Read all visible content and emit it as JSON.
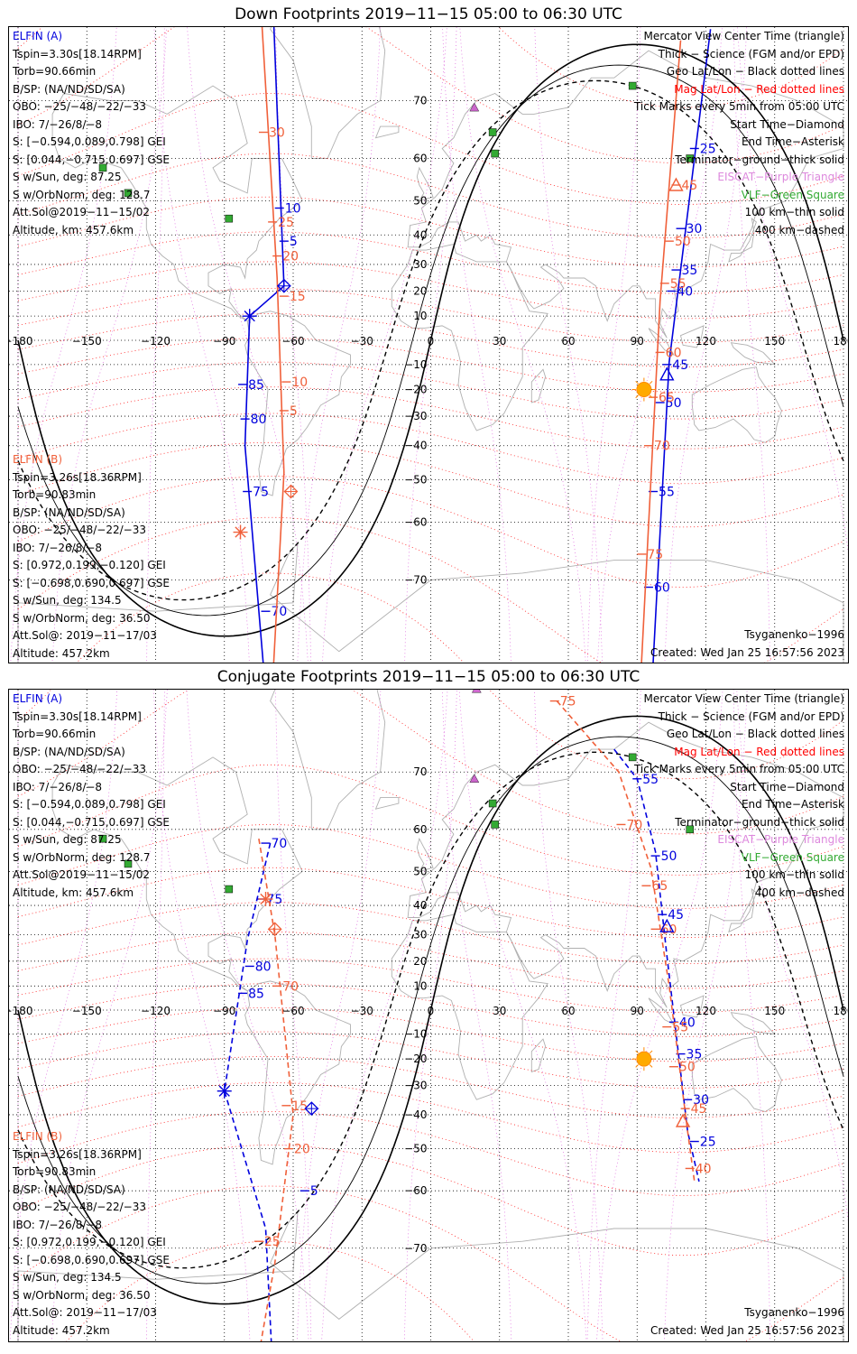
{
  "panels": [
    {
      "title": "Down Footprints 2019−11−15 05:00 to 06:30 UTC",
      "elfin_a": {
        "name": "ELFIN (A)",
        "lines": [
          "Tspin=3.30s[18.14RPM]",
          "Torb=90.66min",
          "B/SP: (NA/ND/SD/SA)",
          "OBO: −25/−48/−22/−33",
          "IBO: 7/−26/8/−8",
          "S: [−0.594,0.089,0.798] GEI",
          "S: [0.044,−0.715,0.697] GSE",
          "S w/Sun, deg: 87.25",
          "S w/OrbNorm, deg: 128.7",
          "Att.Sol@2019−11−15/02",
          "Altitude, km: 457.6km"
        ]
      },
      "elfin_b": {
        "name": "ELFIN (B)",
        "lines": [
          "Tspin=3.26s[18.36RPM]",
          "Torb=90.83min",
          "B/SP: (NA/ND/SD/SA)",
          "OBO: −25/−48/−22/−33",
          "IBO: 7/−26/8/−8",
          "S: [0.972,0.199,−0.120] GEI",
          "S: [−0.698,0.690,0.697] GSE",
          "S w/Sun, deg: 134.5",
          "S w/OrbNorm, deg: 36.50",
          "Att.Sol@: 2019−11−17/03",
          "Altitude: 457.2km"
        ]
      },
      "legend": [
        {
          "text": "Mercator View Center Time (triangle)",
          "color": "#000000"
        },
        {
          "text": "Thick − Science (FGM and/or EPD)",
          "color": "#000000"
        },
        {
          "text": "Geo Lat/Lon − Black dotted lines",
          "color": "#000000"
        },
        {
          "text": "Mag Lat/Lon − Red dotted lines",
          "color": "#ff0000"
        },
        {
          "text": "Tick Marks every 5min from 05:00 UTC",
          "color": "#000000"
        },
        {
          "text": "Start Time−Diamond",
          "color": "#000000"
        },
        {
          "text": "End Time−Asterisk",
          "color": "#000000"
        },
        {
          "text": "Terminator−ground−thick solid",
          "color": "#000000"
        },
        {
          "text": "EISCAT−Purple Triangle",
          "color": "#dd88dd"
        },
        {
          "text": "VLF−Green Square",
          "color": "#33aa33"
        },
        {
          "text": "100 km−thin solid",
          "color": "#000000"
        },
        {
          "text": "400 km−dashed",
          "color": "#000000"
        }
      ],
      "model": "Tsyganenko−1996",
      "created": "Created: Wed Jan 25 16:57:56 2023",
      "lon_labels": [
        "−180",
        "−150",
        "−120",
        "−90",
        "−60",
        "−30",
        "0",
        "30",
        "60",
        "90",
        "120",
        "150",
        "180"
      ],
      "lat_labels": [
        "70",
        "60",
        "50",
        "40",
        "30",
        "20",
        "10",
        "0",
        "−10",
        "−20",
        "−30",
        "−40",
        "−50",
        "−60",
        "−70"
      ],
      "tracks": [
        {
          "sat": "A",
          "color": "#0000dd",
          "dashed": false,
          "points": [
            [
              -70,
              85
            ],
            [
              -64,
              22
            ],
            [
              -79,
              10
            ],
            [
              -81,
              -40
            ],
            [
              -70,
              -85
            ]
          ],
          "ticks": [
            {
              "label": "15",
              "lon": -70,
              "lat": 80
            },
            {
              "label": "10",
              "lon": -66,
              "lat": 48
            },
            {
              "label": "5",
              "lon": -64,
              "lat": 38
            },
            {
              "label": "85",
              "lon": -82,
              "lat": -18
            },
            {
              "label": "80",
              "lon": -81,
              "lat": -31
            },
            {
              "label": "75",
              "lon": -80,
              "lat": -53
            },
            {
              "label": "70",
              "lon": -72,
              "lat": -74
            }
          ]
        },
        {
          "sat": "B",
          "color": "#f0603a",
          "dashed": false,
          "points": [
            [
              -76,
              85
            ],
            [
              -67,
              25
            ],
            [
              -64,
              -48
            ],
            [
              -70,
              -83
            ]
          ],
          "ticks": [
            {
              "label": "30",
              "lon": -73,
              "lat": 65
            },
            {
              "label": "25",
              "lon": -69,
              "lat": 44
            },
            {
              "label": "20",
              "lon": -67,
              "lat": 33
            },
            {
              "label": "15",
              "lon": -64,
              "lat": 18
            },
            {
              "label": "10",
              "lon": -63,
              "lat": -17
            },
            {
              "label": "5",
              "lon": -64,
              "lat": -28
            }
          ]
        },
        {
          "sat": "A",
          "color": "#0000dd",
          "dashed": false,
          "points": [
            [
              122,
              78
            ],
            [
              104,
              -9
            ],
            [
              95,
              -85
            ]
          ],
          "ticks": [
            {
              "label": "25",
              "lon": 115,
              "lat": 62
            },
            {
              "label": "30",
              "lon": 109,
              "lat": 42
            },
            {
              "label": "35",
              "lon": 107,
              "lat": 28
            },
            {
              "label": "40",
              "lon": 105,
              "lat": 20
            },
            {
              "label": "45",
              "lon": 103,
              "lat": -10
            },
            {
              "label": "50",
              "lon": 100,
              "lat": -25
            },
            {
              "label": "55",
              "lon": 97,
              "lat": -53
            },
            {
              "label": "60",
              "lon": 95,
              "lat": -71
            }
          ]
        },
        {
          "sat": "B",
          "color": "#f0603a",
          "dashed": false,
          "points": [
            [
              109,
              77
            ],
            [
              100,
              16
            ],
            [
              90,
              -85
            ]
          ],
          "ticks": [
            {
              "label": "45",
              "lon": 107,
              "lat": 54
            },
            {
              "label": "50",
              "lon": 104,
              "lat": 38
            },
            {
              "label": "55",
              "lon": 102,
              "lat": 23
            },
            {
              "label": "60",
              "lon": 100,
              "lat": -5
            },
            {
              "label": "65",
              "lon": 97,
              "lat": -23
            },
            {
              "label": "70",
              "lon": 95,
              "lat": -40
            },
            {
              "label": "75",
              "lon": 92,
              "lat": -66
            }
          ]
        }
      ],
      "markers": {
        "vlf_sites": [
          [
            -143,
            58
          ],
          [
            -132,
            52
          ],
          [
            -88,
            45
          ],
          [
            27,
            65
          ],
          [
            28,
            61
          ],
          [
            88,
            72
          ],
          [
            113,
            60
          ]
        ],
        "eiscat_sites": [
          [
            20,
            79
          ],
          [
            19,
            69
          ]
        ],
        "sun": [
          93,
          -20
        ],
        "elfin_a_start": [
          -64,
          22
        ],
        "elfin_a_end": [
          -79,
          10
        ],
        "elfin_b_start": [
          -61,
          -53
        ],
        "elfin_b_end": [
          -83,
          -62
        ],
        "elfin_a_center": [
          103,
          -14
        ],
        "elfin_b_center": [
          107,
          54
        ]
      }
    },
    {
      "title": "Conjugate Footprints 2019−11−15 05:00 to 06:30 UTC",
      "elfin_a": {
        "name": "ELFIN (A)",
        "lines": [
          "Tspin=3.30s[18.14RPM]",
          "Torb=90.66min",
          "B/SP: (NA/ND/SD/SA)",
          "OBO: −25/−48/−22/−33",
          "IBO: 7/−26/8/−8",
          "S: [−0.594,0.089,0.798] GEI",
          "S: [0.044,−0.715,0.697] GSE",
          "S w/Sun, deg: 87.25",
          "S w/OrbNorm, deg: 128.7",
          "Att.Sol@2019−11−15/02",
          "Altitude, km: 457.6km"
        ]
      },
      "elfin_b": {
        "name": "ELFIN (B)",
        "lines": [
          "Tspin=3.26s[18.36RPM]",
          "Torb=90.83min",
          "B/SP: (NA/ND/SD/SA)",
          "OBO: −25/−48/−22/−33",
          "IBO: 7/−26/8/−8",
          "S: [0.972,0.199,−0.120] GEI",
          "S: [−0.698,0.690,0.697] GSE",
          "S w/Sun, deg: 134.5",
          "S w/OrbNorm, deg: 36.50",
          "Att.Sol@: 2019−11−17/03",
          "Altitude: 457.2km"
        ]
      },
      "legend": [
        {
          "text": "Mercator View Center Time (triangle)",
          "color": "#000000"
        },
        {
          "text": "Thick − Science (FGM and/or EPD)",
          "color": "#000000"
        },
        {
          "text": "Geo Lat/Lon − Black dotted lines",
          "color": "#000000"
        },
        {
          "text": "Mag Lat/Lon − Red dotted lines",
          "color": "#ff0000"
        },
        {
          "text": "Tick Marks every 5min from 05:00 UTC",
          "color": "#000000"
        },
        {
          "text": "Start Time−Diamond",
          "color": "#000000"
        },
        {
          "text": "End Time−Asterisk",
          "color": "#000000"
        },
        {
          "text": "Terminator−ground−thick solid",
          "color": "#000000"
        },
        {
          "text": "EISCAT−Purple Triangle",
          "color": "#dd88dd"
        },
        {
          "text": "VLF−Green Square",
          "color": "#33aa33"
        },
        {
          "text": "100 km−thin solid",
          "color": "#000000"
        },
        {
          "text": "400 km−dashed",
          "color": "#000000"
        }
      ],
      "model": "Tsyganenko−1996",
      "created": "Created: Wed Jan 25 16:57:56 2023",
      "lon_labels": [
        "−180",
        "−150",
        "−120",
        "−90",
        "−60",
        "−30",
        "0",
        "30",
        "60",
        "90",
        "120",
        "150",
        "180"
      ],
      "lat_labels": [
        "70",
        "60",
        "50",
        "40",
        "30",
        "20",
        "10",
        "0",
        "−10",
        "−20",
        "−30",
        "−40",
        "−50",
        "−60",
        "−70"
      ],
      "tracks": [
        {
          "sat": "A",
          "color": "#0000dd",
          "dashed": true,
          "points": [
            [
              -70,
              57
            ],
            [
              -80,
              28
            ],
            [
              -90,
              -32
            ],
            [
              -72,
              -67
            ],
            [
              -68,
              -85
            ]
          ],
          "ticks": [
            {
              "label": "70",
              "lon": -72,
              "lat": 57
            },
            {
              "label": "75",
              "lon": -74,
              "lat": 42
            },
            {
              "label": "80",
              "lon": -79,
              "lat": 18
            },
            {
              "label": "85",
              "lon": -82,
              "lat": 7
            },
            {
              "label": "5",
              "lon": -55,
              "lat": -60
            }
          ]
        },
        {
          "sat": "B",
          "color": "#f0603a",
          "dashed": true,
          "points": [
            [
              -75,
              58
            ],
            [
              -68,
              30
            ],
            [
              -60,
              -40
            ],
            [
              -68,
              -72
            ],
            [
              -78,
              -83
            ]
          ],
          "ticks": [
            {
              "label": "70",
              "lon": -67,
              "lat": 10
            },
            {
              "label": "15",
              "lon": -63,
              "lat": -37
            },
            {
              "label": "20",
              "lon": -62,
              "lat": -50
            },
            {
              "label": "25",
              "lon": -75,
              "lat": -69
            }
          ]
        },
        {
          "sat": "A",
          "color": "#0000dd",
          "dashed": true,
          "points": [
            [
              80,
              73
            ],
            [
              90,
              69
            ],
            [
              98,
              55
            ],
            [
              103,
              22
            ],
            [
              112,
              -45
            ],
            [
              117,
              -58
            ]
          ],
          "ticks": [
            {
              "label": "55",
              "lon": 90,
              "lat": 69
            },
            {
              "label": "50",
              "lon": 98,
              "lat": 54
            },
            {
              "label": "45",
              "lon": 101,
              "lat": 37
            },
            {
              "label": "40",
              "lon": 106,
              "lat": -5
            },
            {
              "label": "35",
              "lon": 109,
              "lat": -18
            },
            {
              "label": "30",
              "lon": 112,
              "lat": -35
            },
            {
              "label": "25",
              "lon": 115,
              "lat": -48
            }
          ]
        },
        {
          "sat": "B",
          "color": "#f0603a",
          "dashed": true,
          "points": [
            [
              55,
              78
            ],
            [
              82,
              70
            ],
            [
              96,
              51
            ],
            [
              104,
              10
            ],
            [
              112,
              -45
            ],
            [
              115,
              -58
            ]
          ],
          "ticks": [
            {
              "label": "75",
              "lon": 54,
              "lat": 78
            },
            {
              "label": "70",
              "lon": 83,
              "lat": 61
            },
            {
              "label": "65",
              "lon": 94,
              "lat": 46
            },
            {
              "label": "60",
              "lon": 98,
              "lat": 32
            },
            {
              "label": "55",
              "lon": 103,
              "lat": -7
            },
            {
              "label": "50",
              "lon": 106,
              "lat": -23
            },
            {
              "label": "45",
              "lon": 111,
              "lat": -38
            },
            {
              "label": "40",
              "lon": 113,
              "lat": -55
            }
          ]
        }
      ],
      "markers": {
        "vlf_sites": [
          [
            -143,
            58
          ],
          [
            -132,
            52
          ],
          [
            -88,
            45
          ],
          [
            27,
            65
          ],
          [
            28,
            61
          ],
          [
            88,
            72
          ],
          [
            113,
            60
          ]
        ],
        "eiscat_sites": [
          [
            20,
            79
          ],
          [
            19,
            69
          ]
        ],
        "sun": [
          93,
          -20
        ],
        "elfin_a_start": [
          -52,
          -38
        ],
        "elfin_a_end": [
          -90,
          -32
        ],
        "elfin_b_start": [
          -68,
          32
        ],
        "elfin_b_end": [
          -72,
          42
        ],
        "elfin_a_center": [
          103,
          33
        ],
        "elfin_b_center": [
          110,
          -42
        ]
      }
    }
  ]
}
